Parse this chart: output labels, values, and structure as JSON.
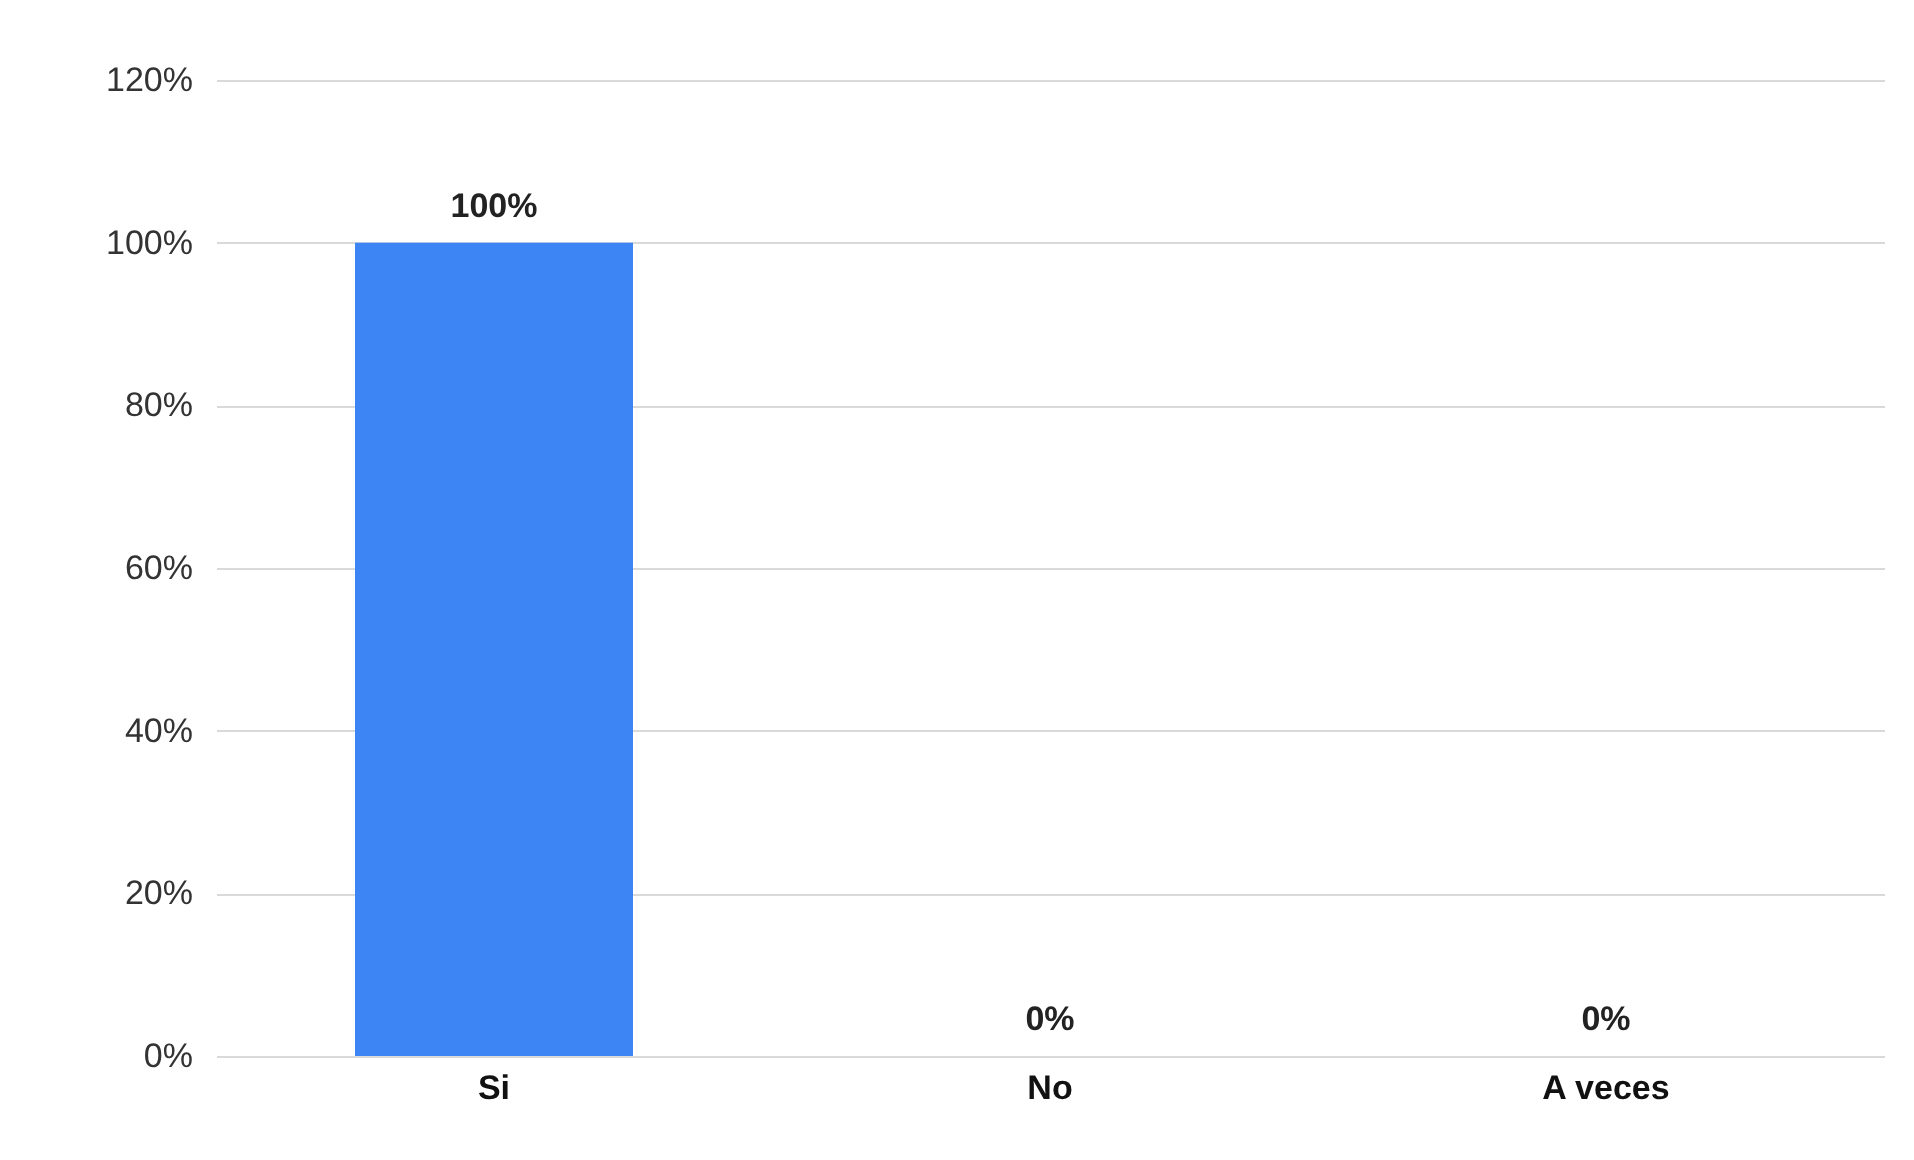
{
  "chart_data": {
    "type": "bar",
    "categories": [
      "Si",
      "No",
      "A veces"
    ],
    "series": [
      {
        "color": "#3d84f5",
        "values": [
          100,
          0,
          0
        ]
      }
    ],
    "value_labels": [
      "100%",
      "0%",
      "0%"
    ],
    "ylim": [
      0,
      120
    ],
    "yticks": [
      {
        "value": 0,
        "label": "0%"
      },
      {
        "value": 20,
        "label": "20%"
      },
      {
        "value": 40,
        "label": "40%"
      },
      {
        "value": 60,
        "label": "60%"
      },
      {
        "value": 80,
        "label": "80%"
      },
      {
        "value": 100,
        "label": "100%"
      },
      {
        "value": 120,
        "label": "120%"
      }
    ],
    "grid": "y",
    "legend": false
  }
}
